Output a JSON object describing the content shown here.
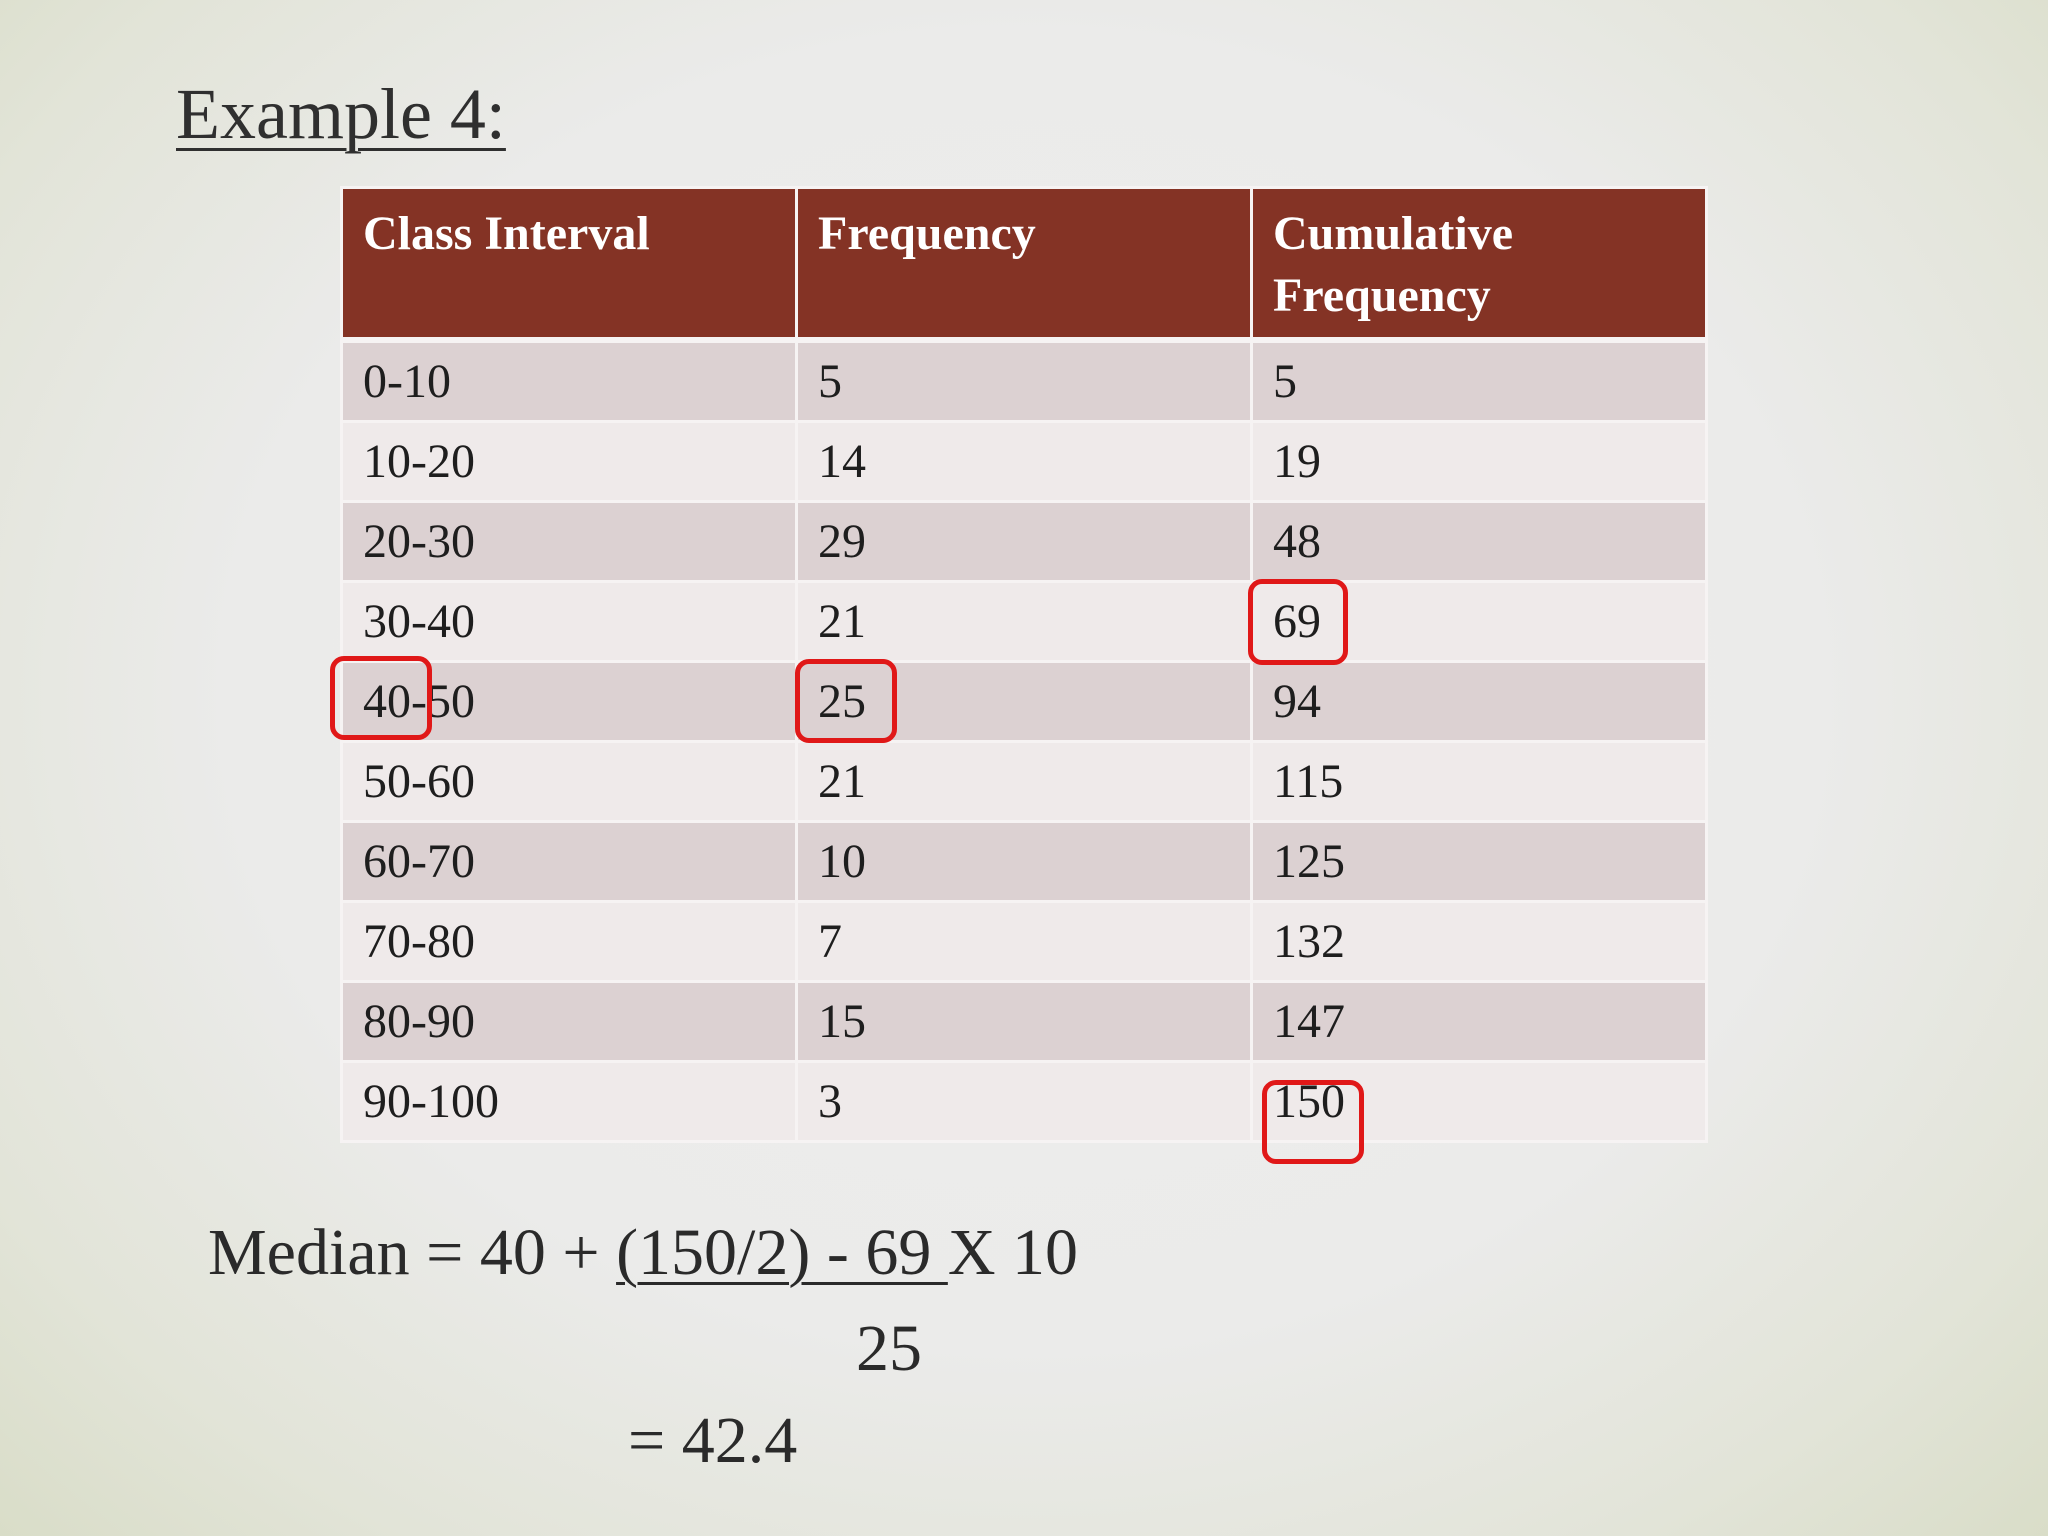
{
  "slide": {
    "title": "Example 4:"
  },
  "table": {
    "headers": [
      "Class Interval",
      "Frequency",
      "Cumulative Frequency"
    ],
    "rows": [
      [
        "0-10",
        "5",
        "5"
      ],
      [
        "10-20",
        "14",
        "19"
      ],
      [
        "20-30",
        "29",
        "48"
      ],
      [
        "30-40",
        "21",
        "69"
      ],
      [
        "40-50",
        "25",
        "94"
      ],
      [
        "50-60",
        "21",
        "115"
      ],
      [
        "60-70",
        "10",
        "125"
      ],
      [
        "70-80",
        "7",
        "132"
      ],
      [
        "80-90",
        "15",
        "147"
      ],
      [
        "90-100",
        "3",
        "150"
      ]
    ]
  },
  "median": {
    "prefix": "Median = 40 + ",
    "numerator": "(150/2) - 69 ",
    "suffix": "X 10",
    "denominator": "25",
    "result": "= 42.4"
  },
  "colors": {
    "header_bg": "#843325",
    "highlight": "#e01818"
  }
}
